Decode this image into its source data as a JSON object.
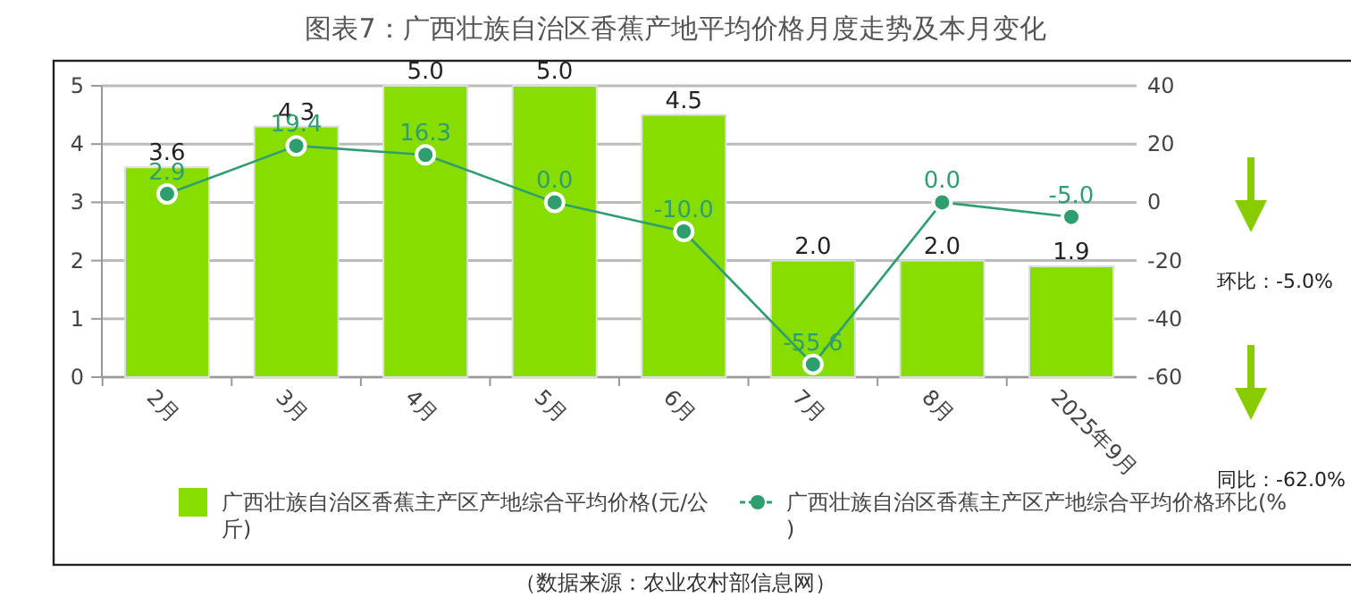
{
  "chart_data": {
    "type": "bar",
    "title": "图表7：广西壮族自治区香蕉产地平均价格月度走势及本月变化",
    "categories": [
      "2月",
      "3月",
      "4月",
      "5月",
      "6月",
      "7月",
      "8月",
      "2025年9月"
    ],
    "series": [
      {
        "name": "广西壮族自治区香蕉主产区产地综合平均价格(元/公斤)",
        "color": "#88dd00",
        "values": [
          3.6,
          4.3,
          5.0,
          5.0,
          4.5,
          2.0,
          2.0,
          1.9
        ],
        "value_labels": [
          "3.6",
          "4.3",
          "5.0",
          "5.0",
          "4.5",
          "2.0",
          "2.0",
          "1.9"
        ]
      },
      {
        "name": "广西壮族自治区香蕉主产区产地综合平均价格环比(%)",
        "type": "line",
        "axis": "y2",
        "color": "#2e9e6e",
        "marker": "circle",
        "values": [
          2.9,
          19.4,
          16.3,
          0.0,
          -10.0,
          -55.6,
          0.0,
          -5.0
        ],
        "value_labels": [
          "2.9",
          "19.4",
          "16.3",
          "0.0",
          "-10.0",
          "-55.6",
          "0.0",
          "-5.0"
        ]
      }
    ],
    "ylim": [
      0,
      5
    ],
    "yticks": [
      0,
      1,
      2,
      3,
      4,
      5
    ],
    "y2lim": [
      -60,
      40
    ],
    "y2ticks": [
      -60,
      -40,
      -20,
      0,
      20,
      40
    ],
    "grid": "y",
    "legend": "bottom",
    "annotations": [
      "环比：-5.0%",
      "同比：-62.0%",
      "（数据来源：农业农村部信息网）"
    ]
  }
}
